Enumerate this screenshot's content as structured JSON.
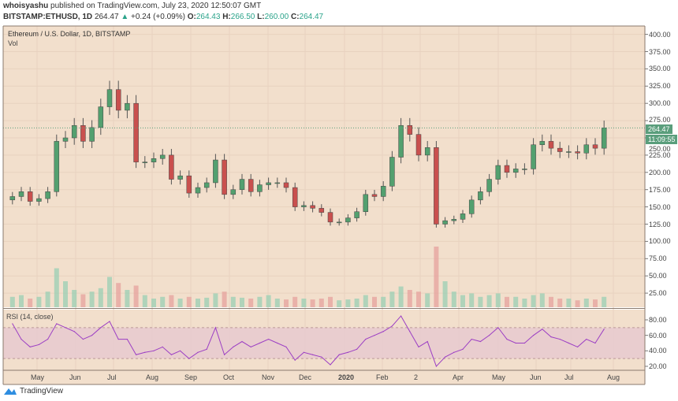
{
  "header": {
    "publisher": "whoisyashu",
    "published_text": "published on TradingView.com, July 23, 2020 12:50:07 GMT",
    "symbol": "BITSTAMP:ETHUSD, 1D",
    "last": "264.47",
    "change": "+0.24 (+0.09%)",
    "o_label": "O:",
    "o": "264.43",
    "h_label": "H:",
    "h": "266.50",
    "l_label": "L:",
    "l": "260.00",
    "c_label": "C:",
    "c": "264.47"
  },
  "chart_title": "Ethereum / U.S. Dollar, 1D, BITSTAMP",
  "vol_label": "Vol",
  "rsi_label": "RSI (14, close)",
  "price_label": "264.47",
  "countdown": "11:09:55",
  "logo_text": "TradingView",
  "colors": {
    "background": "#f2dfcc",
    "up": "#53a06f",
    "down": "#c9504e",
    "rsi": "#9c3fc4",
    "rsi_band": "#e6c8d0",
    "price_tag": "#5a9e7c"
  },
  "chart_data": [
    {
      "type": "candlestick",
      "title": "Ethereum / U.S. Dollar, 1D, BITSTAMP",
      "interval": "weekly approximation of daily candles",
      "y_ticks": [
        "400.00",
        "375.00",
        "350.00",
        "325.00",
        "300.00",
        "275.00",
        "250.00",
        "225.00",
        "200.00",
        "175.00",
        "150.00",
        "125.00",
        "100.00",
        "75.00",
        "50.00",
        "25.00"
      ],
      "ylim": [
        0,
        410
      ],
      "x_ticks": [
        "May",
        "Jun",
        "Jul",
        "Aug",
        "Sep",
        "Oct",
        "Nov",
        "Dec",
        "2020",
        "Feb",
        "2",
        "Apr",
        "May",
        "Jun",
        "Jul",
        "Aug"
      ],
      "week_start": [
        "2019-04-08",
        "2019-04-15",
        "2019-04-22",
        "2019-04-29",
        "2019-05-06",
        "2019-05-13",
        "2019-05-20",
        "2019-05-27",
        "2019-06-03",
        "2019-06-10",
        "2019-06-17",
        "2019-06-24",
        "2019-07-01",
        "2019-07-08",
        "2019-07-15",
        "2019-07-22",
        "2019-07-29",
        "2019-08-05",
        "2019-08-12",
        "2019-08-19",
        "2019-08-26",
        "2019-09-02",
        "2019-09-09",
        "2019-09-16",
        "2019-09-23",
        "2019-09-30",
        "2019-10-07",
        "2019-10-14",
        "2019-10-21",
        "2019-10-28",
        "2019-11-04",
        "2019-11-11",
        "2019-11-18",
        "2019-11-25",
        "2019-12-02",
        "2019-12-09",
        "2019-12-16",
        "2019-12-23",
        "2019-12-30",
        "2020-01-06",
        "2020-01-13",
        "2020-01-20",
        "2020-01-27",
        "2020-02-03",
        "2020-02-10",
        "2020-02-17",
        "2020-02-24",
        "2020-03-02",
        "2020-03-09",
        "2020-03-16",
        "2020-03-23",
        "2020-03-30",
        "2020-04-06",
        "2020-04-13",
        "2020-04-20",
        "2020-04-27",
        "2020-05-04",
        "2020-05-11",
        "2020-05-18",
        "2020-05-25",
        "2020-06-01",
        "2020-06-08",
        "2020-06-15",
        "2020-06-22",
        "2020-06-29",
        "2020-07-06",
        "2020-07-13",
        "2020-07-20"
      ],
      "close": [
        165,
        172,
        158,
        162,
        172,
        245,
        250,
        268,
        245,
        265,
        295,
        320,
        290,
        300,
        215,
        215,
        220,
        225,
        190,
        195,
        170,
        178,
        185,
        218,
        168,
        175,
        190,
        172,
        182,
        185,
        185,
        178,
        150,
        152,
        148,
        142,
        128,
        128,
        134,
        143,
        168,
        165,
        180,
        222,
        268,
        255,
        225,
        236,
        125,
        130,
        132,
        140,
        160,
        172,
        190,
        210,
        200,
        205,
        205,
        240,
        245,
        235,
        230,
        230,
        228,
        240,
        235,
        264.47
      ],
      "volume": [
        12,
        14,
        10,
        12,
        18,
        45,
        30,
        20,
        15,
        18,
        22,
        35,
        28,
        20,
        25,
        14,
        10,
        12,
        14,
        10,
        12,
        10,
        11,
        16,
        18,
        12,
        11,
        10,
        12,
        14,
        10,
        9,
        12,
        10,
        9,
        10,
        12,
        8,
        9,
        10,
        14,
        12,
        12,
        18,
        24,
        20,
        18,
        16,
        70,
        30,
        18,
        14,
        16,
        12,
        14,
        16,
        12,
        12,
        10,
        14,
        16,
        12,
        10,
        10,
        8,
        10,
        9,
        12
      ],
      "current_price": 264.47
    },
    {
      "type": "line",
      "title": "RSI (14, close)",
      "y_ticks": [
        "80.00",
        "60.00",
        "40.00",
        "20.00"
      ],
      "bands": [
        30,
        70
      ],
      "values": [
        75,
        55,
        45,
        48,
        55,
        75,
        70,
        65,
        55,
        60,
        70,
        78,
        55,
        55,
        35,
        38,
        40,
        45,
        35,
        40,
        30,
        38,
        42,
        70,
        35,
        45,
        52,
        45,
        50,
        55,
        50,
        45,
        28,
        38,
        35,
        32,
        22,
        35,
        38,
        42,
        55,
        60,
        65,
        72,
        85,
        65,
        45,
        52,
        20,
        32,
        38,
        42,
        55,
        52,
        60,
        70,
        55,
        50,
        50,
        60,
        68,
        58,
        55,
        50,
        45,
        55,
        50,
        68
      ]
    }
  ]
}
